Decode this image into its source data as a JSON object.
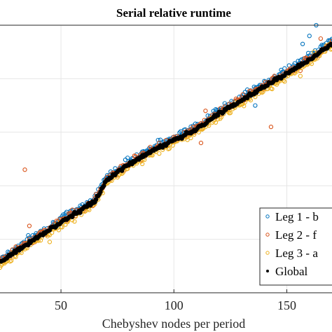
{
  "chart_data": {
    "type": "scatter",
    "title": "Serial relative runtime",
    "xlabel": "Chebyshev nodes per period",
    "ylabel": "",
    "xlim": [
      23,
      170
    ],
    "ylim": [
      0,
      1
    ],
    "x_ticks": [
      50,
      100,
      150
    ],
    "x_tick_labels": [
      "50",
      "100",
      "150"
    ],
    "grid": true,
    "legend_position": "bottom-right (clipped)",
    "colors": {
      "leg1": "#0072BD",
      "leg2": "#D95319",
      "leg3": "#EDB120",
      "global": "#000000",
      "grid": "#e6e6e6",
      "axes": "#262626"
    },
    "legend": [
      {
        "key": "leg1",
        "label": "Leg 1 - b"
      },
      {
        "key": "leg2",
        "label": "Leg 2 - f"
      },
      {
        "key": "leg3",
        "label": "Leg 3 - a"
      },
      {
        "key": "global",
        "label": "Global"
      }
    ],
    "trend": [
      [
        23,
        0.115
      ],
      [
        40,
        0.21
      ],
      [
        55,
        0.29
      ],
      [
        65,
        0.34
      ],
      [
        70,
        0.42
      ],
      [
        80,
        0.48
      ],
      [
        90,
        0.53
      ],
      [
        100,
        0.57
      ],
      [
        110,
        0.61
      ],
      [
        120,
        0.67
      ],
      [
        130,
        0.72
      ],
      [
        140,
        0.77
      ],
      [
        150,
        0.82
      ],
      [
        160,
        0.87
      ],
      [
        170,
        0.93
      ]
    ],
    "outliers": {
      "leg1": [
        [
          136,
          0.7
        ],
        [
          160,
          0.96
        ],
        [
          163,
          1.0
        ],
        [
          157,
          0.93
        ],
        [
          168,
          0.92
        ]
      ],
      "leg2": [
        [
          34,
          0.46
        ],
        [
          36,
          0.25
        ],
        [
          83,
          0.51
        ],
        [
          112,
          0.56
        ],
        [
          137,
          0.76
        ],
        [
          114,
          0.68
        ],
        [
          143,
          0.62
        ],
        [
          156,
          0.83
        ],
        [
          165,
          0.95
        ]
      ],
      "leg3": [
        [
          28,
          0.12
        ],
        [
          45,
          0.19
        ],
        [
          156,
          0.81
        ],
        [
          162,
          0.9
        ],
        [
          169,
          0.93
        ]
      ],
      "global": []
    }
  }
}
